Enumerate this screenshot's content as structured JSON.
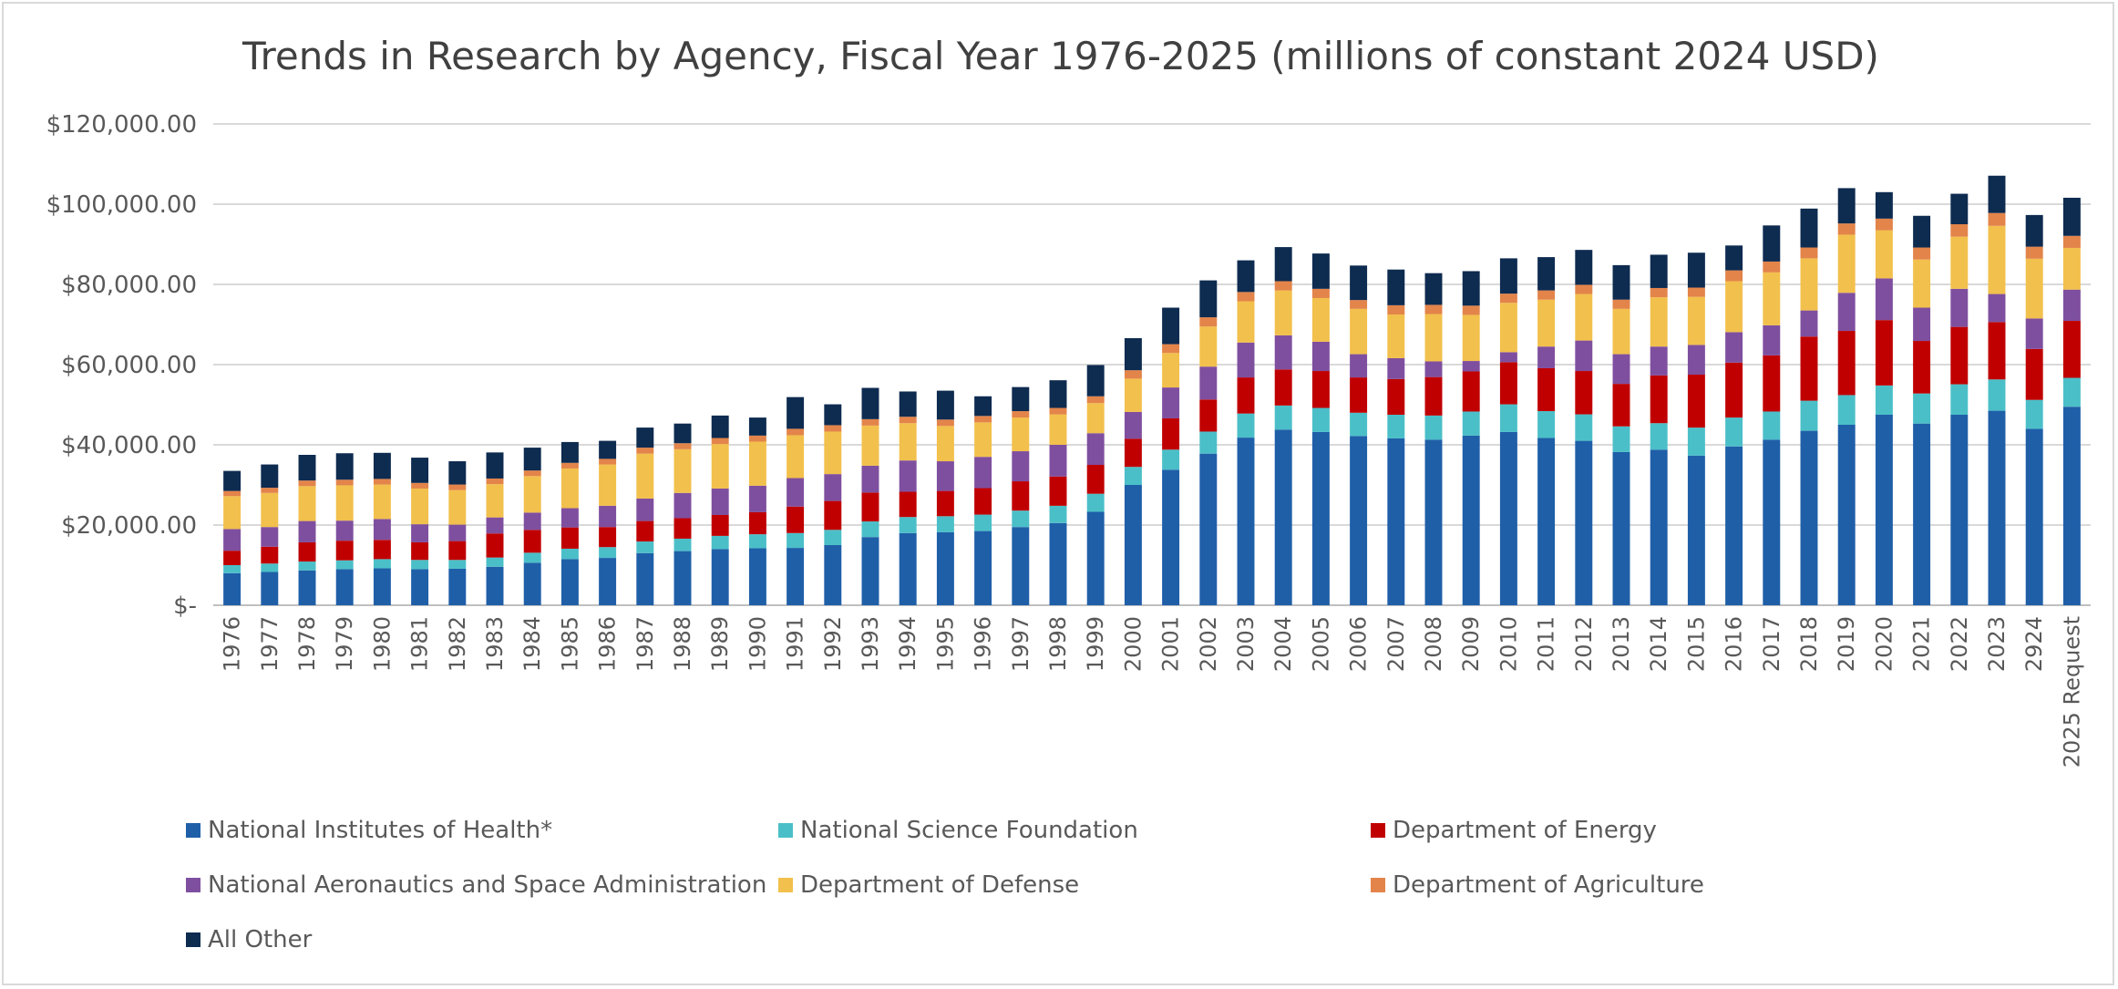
{
  "chart_data": {
    "type": "bar",
    "stacked": true,
    "title": "Trends in Research by Agency, Fiscal Year 1976-2025 (millions of constant 2024 USD)",
    "xlabel": "",
    "ylabel": "",
    "ylim": [
      0,
      120000
    ],
    "yticks": [
      {
        "value": 0,
        "label": "$-"
      },
      {
        "value": 20000,
        "label": "$20,000.00"
      },
      {
        "value": 40000,
        "label": "$40,000.00"
      },
      {
        "value": 60000,
        "label": "$60,000.00"
      },
      {
        "value": 80000,
        "label": "$80,000.00"
      },
      {
        "value": 100000,
        "label": "$100,000.00"
      },
      {
        "value": 120000,
        "label": "$120,000.00"
      }
    ],
    "grid": true,
    "legend_position": "bottom",
    "categories": [
      "1976",
      "1977",
      "1978",
      "1979",
      "1980",
      "1981",
      "1982",
      "1983",
      "1984",
      "1985",
      "1986",
      "1987",
      "1988",
      "1989",
      "1990",
      "1991",
      "1992",
      "1993",
      "1994",
      "1995",
      "1996",
      "1997",
      "1998",
      "1999",
      "2000",
      "2001",
      "2002",
      "2003",
      "2004",
      "2005",
      "2006",
      "2007",
      "2008",
      "2009",
      "2010",
      "2011",
      "2012",
      "2013",
      "2014",
      "2015",
      "2016",
      "2017",
      "2018",
      "2019",
      "2020",
      "2021",
      "2022",
      "2023",
      "2924",
      "2025 Request"
    ],
    "series": [
      {
        "name": "National Institutes of Health*",
        "color": "#1f5fa8",
        "values": [
          8000,
          8300,
          8700,
          9000,
          9200,
          9000,
          9100,
          9600,
          10600,
          11500,
          11800,
          13000,
          13500,
          14000,
          14200,
          14300,
          15000,
          17000,
          18000,
          18200,
          18500,
          19500,
          20500,
          23300,
          30000,
          33800,
          37800,
          41800,
          43800,
          43200,
          42200,
          41600,
          41300,
          42300,
          43200,
          41700,
          41000,
          38200,
          38800,
          37300,
          39600,
          41300,
          43500,
          45000,
          47500,
          45300,
          47500,
          48500,
          44000,
          49500
        ]
      },
      {
        "name": "National Science Foundation",
        "color": "#4bbfc8",
        "values": [
          2000,
          2100,
          2200,
          2200,
          2300,
          2300,
          2200,
          2300,
          2500,
          2600,
          2700,
          2900,
          3100,
          3300,
          3500,
          3700,
          3800,
          3900,
          4000,
          4000,
          4100,
          4100,
          4300,
          4500,
          4500,
          5000,
          5500,
          6000,
          6000,
          6000,
          5800,
          5900,
          6000,
          6000,
          6900,
          6700,
          6600,
          6400,
          6600,
          7000,
          7200,
          7000,
          7500,
          7400,
          7300,
          7500,
          7600,
          7800,
          7200,
          7200
        ]
      },
      {
        "name": "Department of Energy",
        "color": "#c00000",
        "values": [
          3600,
          4200,
          4800,
          4900,
          4800,
          4400,
          4700,
          6000,
          5700,
          5300,
          5000,
          5100,
          5100,
          5200,
          5500,
          6600,
          7200,
          7200,
          6300,
          6300,
          6600,
          7300,
          7300,
          7200,
          7000,
          7800,
          8000,
          9000,
          9000,
          9200,
          8800,
          8900,
          9600,
          10000,
          10500,
          10700,
          10800,
          10600,
          11900,
          13200,
          13700,
          14000,
          16000,
          16000,
          16300,
          13100,
          14300,
          14300,
          12700,
          14200
        ]
      },
      {
        "name": "National Aeronautics and Space Administration",
        "color": "#7f4f9f",
        "values": [
          5400,
          4900,
          5300,
          5000,
          5200,
          4500,
          4100,
          4000,
          4300,
          4800,
          5300,
          5600,
          6300,
          6600,
          6600,
          7100,
          6700,
          6700,
          7800,
          7400,
          7800,
          7500,
          7900,
          7900,
          6700,
          7700,
          8200,
          8700,
          8500,
          7300,
          5800,
          5200,
          3900,
          2600,
          2500,
          5400,
          7600,
          7400,
          7200,
          7400,
          7600,
          7500,
          6500,
          9500,
          10400,
          8300,
          9500,
          7000,
          7600,
          7800
        ]
      },
      {
        "name": "Department of Defense",
        "color": "#f2c04c",
        "values": [
          8200,
          8500,
          8700,
          8800,
          8600,
          8900,
          8600,
          8300,
          9100,
          9900,
          10300,
          11200,
          10900,
          11100,
          11000,
          10700,
          10600,
          10000,
          9300,
          8800,
          8600,
          8400,
          7600,
          7500,
          8300,
          8600,
          10000,
          10300,
          11200,
          10900,
          11300,
          10900,
          11800,
          11500,
          12300,
          11700,
          11600,
          11300,
          12300,
          12000,
          12700,
          13200,
          13000,
          14500,
          12000,
          12000,
          13000,
          17000,
          14900,
          10400
        ]
      },
      {
        "name": "Department of Agriculture",
        "color": "#e3844a",
        "values": [
          1300,
          1300,
          1400,
          1400,
          1400,
          1400,
          1400,
          1400,
          1400,
          1400,
          1400,
          1500,
          1500,
          1500,
          1500,
          1600,
          1600,
          1600,
          1600,
          1600,
          1600,
          1600,
          1600,
          1700,
          2100,
          2200,
          2300,
          2300,
          2300,
          2300,
          2200,
          2300,
          2300,
          2300,
          2300,
          2300,
          2300,
          2300,
          2300,
          2300,
          2700,
          2700,
          2700,
          2800,
          2900,
          3000,
          3100,
          3200,
          3000,
          3000
        ]
      },
      {
        "name": "All Other",
        "color": "#0e2b50",
        "values": [
          5000,
          5800,
          6400,
          6600,
          6500,
          6300,
          5800,
          6500,
          5700,
          5200,
          4500,
          5000,
          4900,
          5600,
          4500,
          7900,
          5200,
          7800,
          6300,
          7200,
          4900,
          6000,
          6900,
          7800,
          8000,
          9100,
          9200,
          7900,
          8500,
          8800,
          8600,
          8900,
          7900,
          8600,
          8800,
          8300,
          8700,
          8600,
          8300,
          8700,
          6200,
          9000,
          9700,
          8800,
          6600,
          7900,
          7600,
          9300,
          7900,
          9500
        ]
      }
    ]
  }
}
